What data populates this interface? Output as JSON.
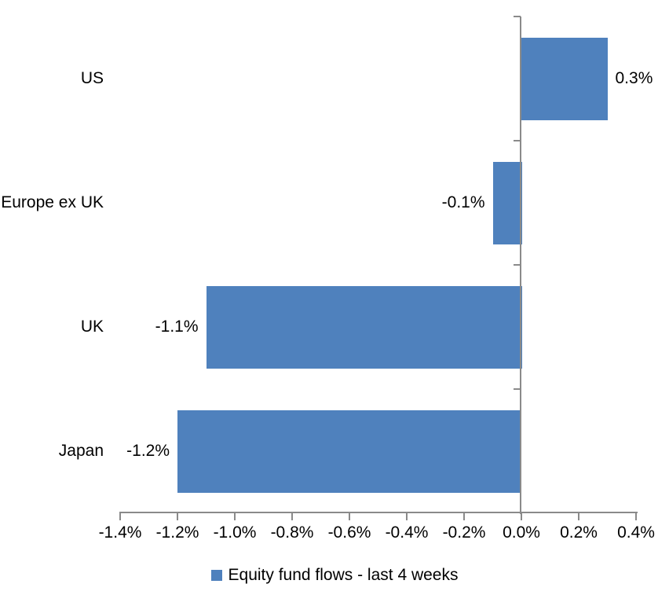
{
  "chart_data": {
    "type": "bar",
    "orientation": "horizontal",
    "title": "",
    "xlabel": "",
    "ylabel": "",
    "categories": [
      "US",
      "Europe ex UK",
      "UK",
      "Japan"
    ],
    "series": [
      {
        "name": "Equity fund flows - last 4 weeks",
        "values": [
          0.3,
          -0.1,
          -1.1,
          -1.2
        ],
        "data_labels": [
          "0.3%",
          "-0.1%",
          "-1.1%",
          "-1.2%"
        ],
        "color": "#4f81bd"
      }
    ],
    "xlim": [
      -1.4,
      0.4
    ],
    "x_tick_values": [
      -1.4,
      -1.2,
      -1.0,
      -0.8,
      -0.6,
      -0.4,
      -0.2,
      0.0,
      0.2,
      0.4
    ],
    "x_tick_labels": [
      "-1.4%",
      "-1.2%",
      "-1.0%",
      "-0.8%",
      "-0.6%",
      "-0.4%",
      "-0.2%",
      "0.0%",
      "0.2%",
      "0.4%"
    ],
    "grid": false,
    "legend_position": "bottom",
    "bar_fill_ratio": 0.6646,
    "colors": {
      "bar": "#4f81bd",
      "axis": "#8a8a8a",
      "text": "#000000",
      "background": "#ffffff"
    }
  },
  "legend": {
    "items": [
      {
        "label": "Equity fund flows - last 4 weeks",
        "color": "#4f81bd"
      }
    ]
  }
}
